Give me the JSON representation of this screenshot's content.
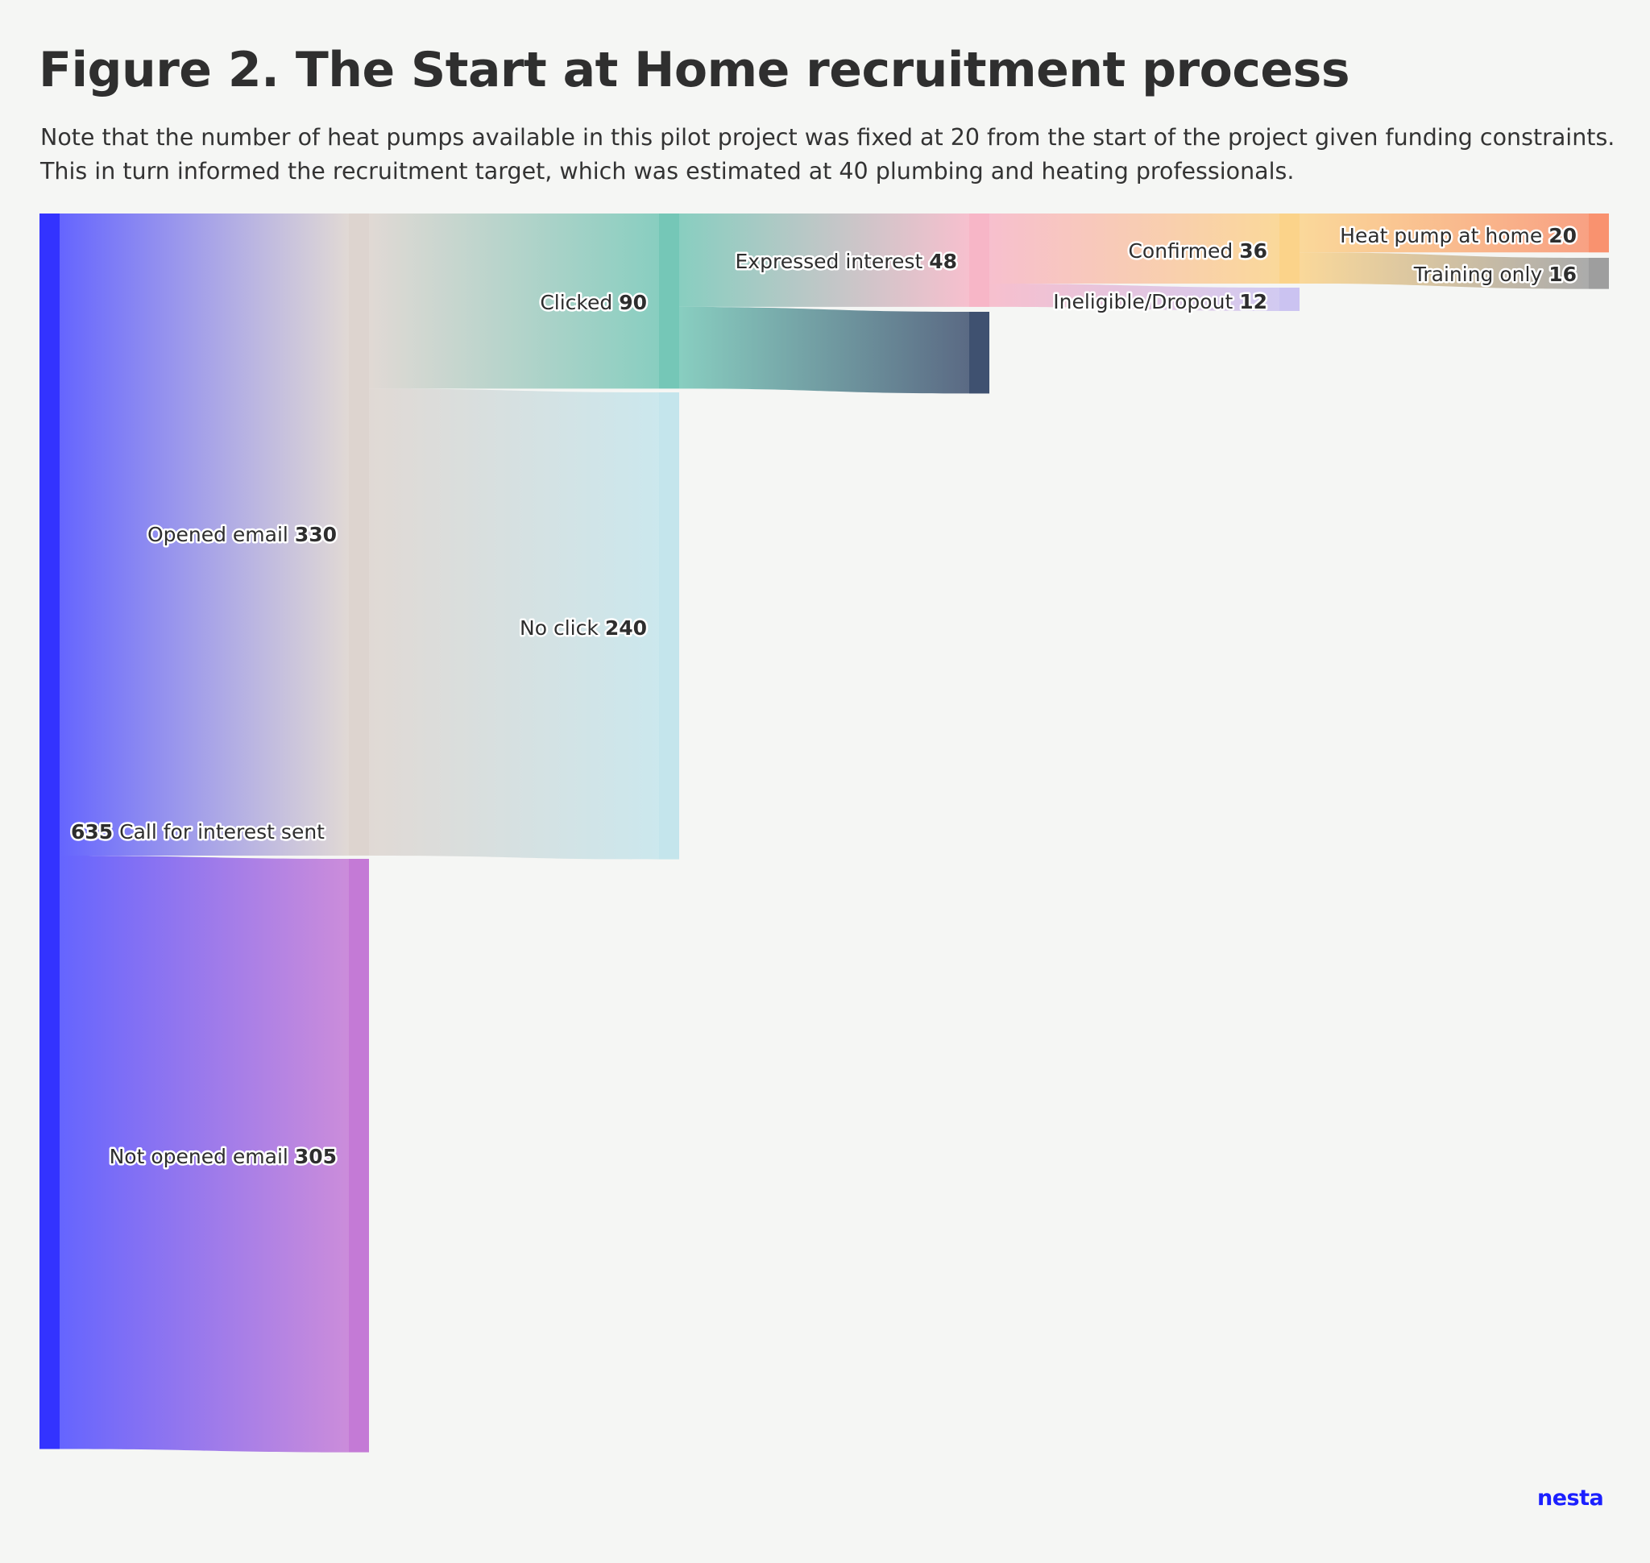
{
  "title": "Figure 2. The Start at Home recruitment process",
  "subtitle": "Note that the number of heat pumps available in this pilot project was fixed at 20 from the start of the project given funding constraints. This in turn informed the recruitment target, which was estimated at 40 plumbing and heating professionals.",
  "logo": "nesta",
  "diagram": {
    "type": "sankey",
    "nodes": [
      {
        "id": "sent",
        "label": "Call for interest sent",
        "value": 635,
        "color": "#3333ff",
        "value_first": true
      },
      {
        "id": "opened",
        "label": "Opened email",
        "value": 330,
        "color": "#ddd4cf"
      },
      {
        "id": "not_opened",
        "label": "Not opened email",
        "value": 305,
        "color": "#c47ad6"
      },
      {
        "id": "clicked",
        "label": "Clicked",
        "value": 90,
        "color": "#75c7b7"
      },
      {
        "id": "no_click",
        "label": "No click",
        "value": 240,
        "color": "#c4e5ec"
      },
      {
        "id": "interest",
        "label": "Expressed interest",
        "value": 48,
        "color": "#f7b6c7"
      },
      {
        "id": "no_interest",
        "label": "",
        "value": 42,
        "color": "#3f5170"
      },
      {
        "id": "confirmed",
        "label": "Confirmed",
        "value": 36,
        "color": "#fbd38a"
      },
      {
        "id": "dropout",
        "label": "Ineligible/Dropout",
        "value": 12,
        "color": "#cbc3f1"
      },
      {
        "id": "heatpump",
        "label": "Heat pump at home",
        "value": 20,
        "color": "#f9926f"
      },
      {
        "id": "training",
        "label": "Training only",
        "value": 16,
        "color": "#9e9e9e"
      }
    ],
    "links": [
      {
        "source": "sent",
        "target": "opened",
        "value": 330
      },
      {
        "source": "sent",
        "target": "not_opened",
        "value": 305
      },
      {
        "source": "opened",
        "target": "clicked",
        "value": 90
      },
      {
        "source": "opened",
        "target": "no_click",
        "value": 240
      },
      {
        "source": "clicked",
        "target": "interest",
        "value": 48
      },
      {
        "source": "clicked",
        "target": "no_interest",
        "value": 42
      },
      {
        "source": "interest",
        "target": "confirmed",
        "value": 36
      },
      {
        "source": "interest",
        "target": "dropout",
        "value": 12
      },
      {
        "source": "confirmed",
        "target": "heatpump",
        "value": 20
      },
      {
        "source": "confirmed",
        "target": "training",
        "value": 16
      }
    ]
  }
}
